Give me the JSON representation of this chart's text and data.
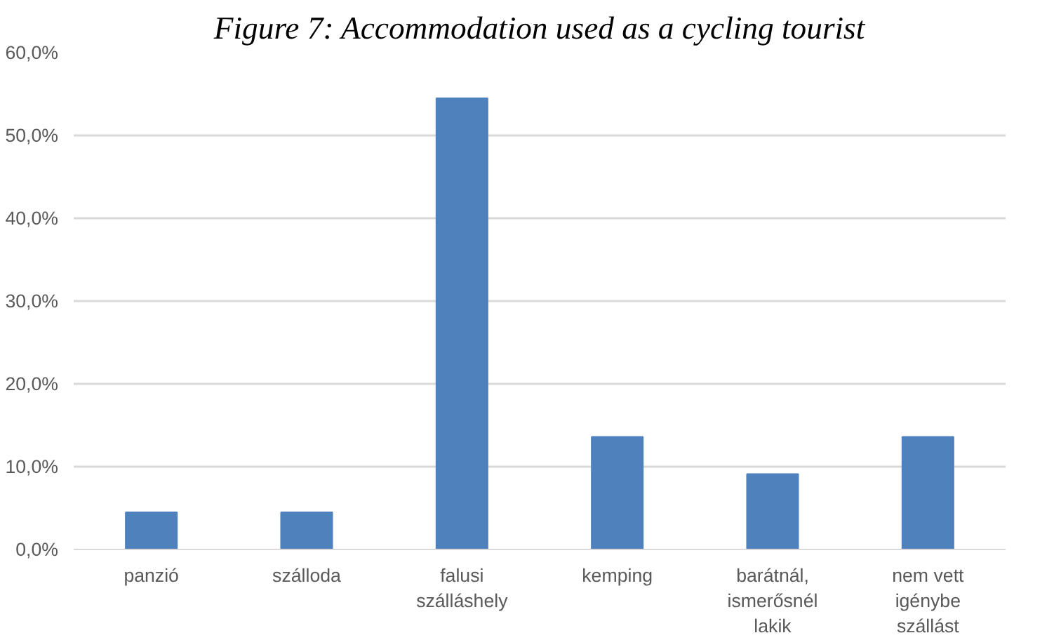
{
  "chart_data": {
    "type": "bar",
    "title": "Figure 7: Accommodation used as a cycling tourist",
    "categories": [
      "panzió",
      "szálloda",
      "falusi szálláshely",
      "kemping",
      "barátnál, ismerősnél lakik",
      "nem vett igénybe szállást"
    ],
    "values": [
      4.5,
      4.5,
      54.5,
      13.6,
      9.1,
      13.6
    ],
    "color": "#4f81bd",
    "ylim": [
      0,
      60
    ],
    "yticks": [
      {
        "value": 0,
        "label": "0,0%"
      },
      {
        "value": 10,
        "label": "10,0%"
      },
      {
        "value": 20,
        "label": "20,0%"
      },
      {
        "value": 30,
        "label": "30,0%"
      },
      {
        "value": 40,
        "label": "40,0%"
      },
      {
        "value": 50,
        "label": "50,0%"
      },
      {
        "value": 60,
        "label": "60,0%"
      }
    ],
    "grid": "y"
  }
}
